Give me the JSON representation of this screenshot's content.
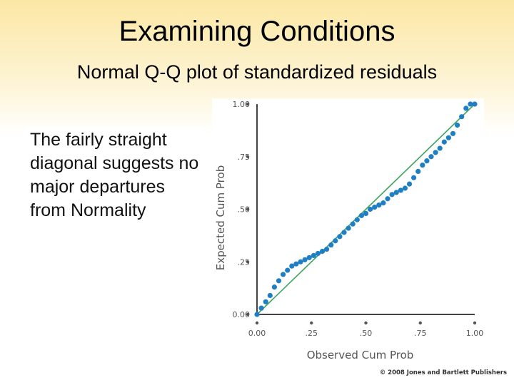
{
  "slide": {
    "title": "Examining Conditions",
    "subtitle": "Normal Q-Q plot of standardized residuals",
    "body": "The fairly straight diagonal suggests no major departures from Normality",
    "copyright": "© 2008 Jones and Bartlett Publishers"
  },
  "chart_data": {
    "type": "scatter",
    "xlabel": "Observed Cum Prob",
    "ylabel": "Expected Cum Prob",
    "xlim": [
      0,
      1
    ],
    "ylim": [
      0,
      1
    ],
    "x_ticks": [
      0,
      0.25,
      0.5,
      0.75,
      1
    ],
    "x_tick_labels": [
      "0.00",
      ".25",
      ".50",
      ".75",
      "1.00"
    ],
    "y_ticks": [
      0,
      0.25,
      0.5,
      0.75,
      1
    ],
    "y_tick_labels": [
      "0.00",
      ".25",
      ".50",
      ".75",
      "1.00"
    ],
    "reference_line": {
      "from": [
        0,
        0
      ],
      "to": [
        1,
        1
      ],
      "color": "#3aa55c"
    },
    "point_color": "#1f7fc4",
    "points": [
      [
        0.0,
        0.0
      ],
      [
        0.02,
        0.03
      ],
      [
        0.04,
        0.06
      ],
      [
        0.06,
        0.09
      ],
      [
        0.08,
        0.13
      ],
      [
        0.1,
        0.16
      ],
      [
        0.12,
        0.19
      ],
      [
        0.14,
        0.21
      ],
      [
        0.16,
        0.23
      ],
      [
        0.18,
        0.24
      ],
      [
        0.2,
        0.25
      ],
      [
        0.22,
        0.26
      ],
      [
        0.24,
        0.27
      ],
      [
        0.26,
        0.28
      ],
      [
        0.28,
        0.29
      ],
      [
        0.3,
        0.3
      ],
      [
        0.32,
        0.31
      ],
      [
        0.34,
        0.33
      ],
      [
        0.36,
        0.35
      ],
      [
        0.38,
        0.37
      ],
      [
        0.4,
        0.39
      ],
      [
        0.42,
        0.41
      ],
      [
        0.44,
        0.43
      ],
      [
        0.46,
        0.45
      ],
      [
        0.48,
        0.47
      ],
      [
        0.5,
        0.48
      ],
      [
        0.52,
        0.5
      ],
      [
        0.54,
        0.51
      ],
      [
        0.56,
        0.52
      ],
      [
        0.58,
        0.53
      ],
      [
        0.6,
        0.55
      ],
      [
        0.62,
        0.57
      ],
      [
        0.64,
        0.58
      ],
      [
        0.66,
        0.59
      ],
      [
        0.68,
        0.6
      ],
      [
        0.7,
        0.62
      ],
      [
        0.72,
        0.65
      ],
      [
        0.74,
        0.68
      ],
      [
        0.76,
        0.71
      ],
      [
        0.78,
        0.73
      ],
      [
        0.8,
        0.75
      ],
      [
        0.82,
        0.77
      ],
      [
        0.84,
        0.79
      ],
      [
        0.86,
        0.82
      ],
      [
        0.88,
        0.84
      ],
      [
        0.9,
        0.86
      ],
      [
        0.92,
        0.9
      ],
      [
        0.94,
        0.94
      ],
      [
        0.96,
        0.98
      ],
      [
        0.98,
        1.0
      ],
      [
        1.0,
        1.0
      ]
    ]
  }
}
